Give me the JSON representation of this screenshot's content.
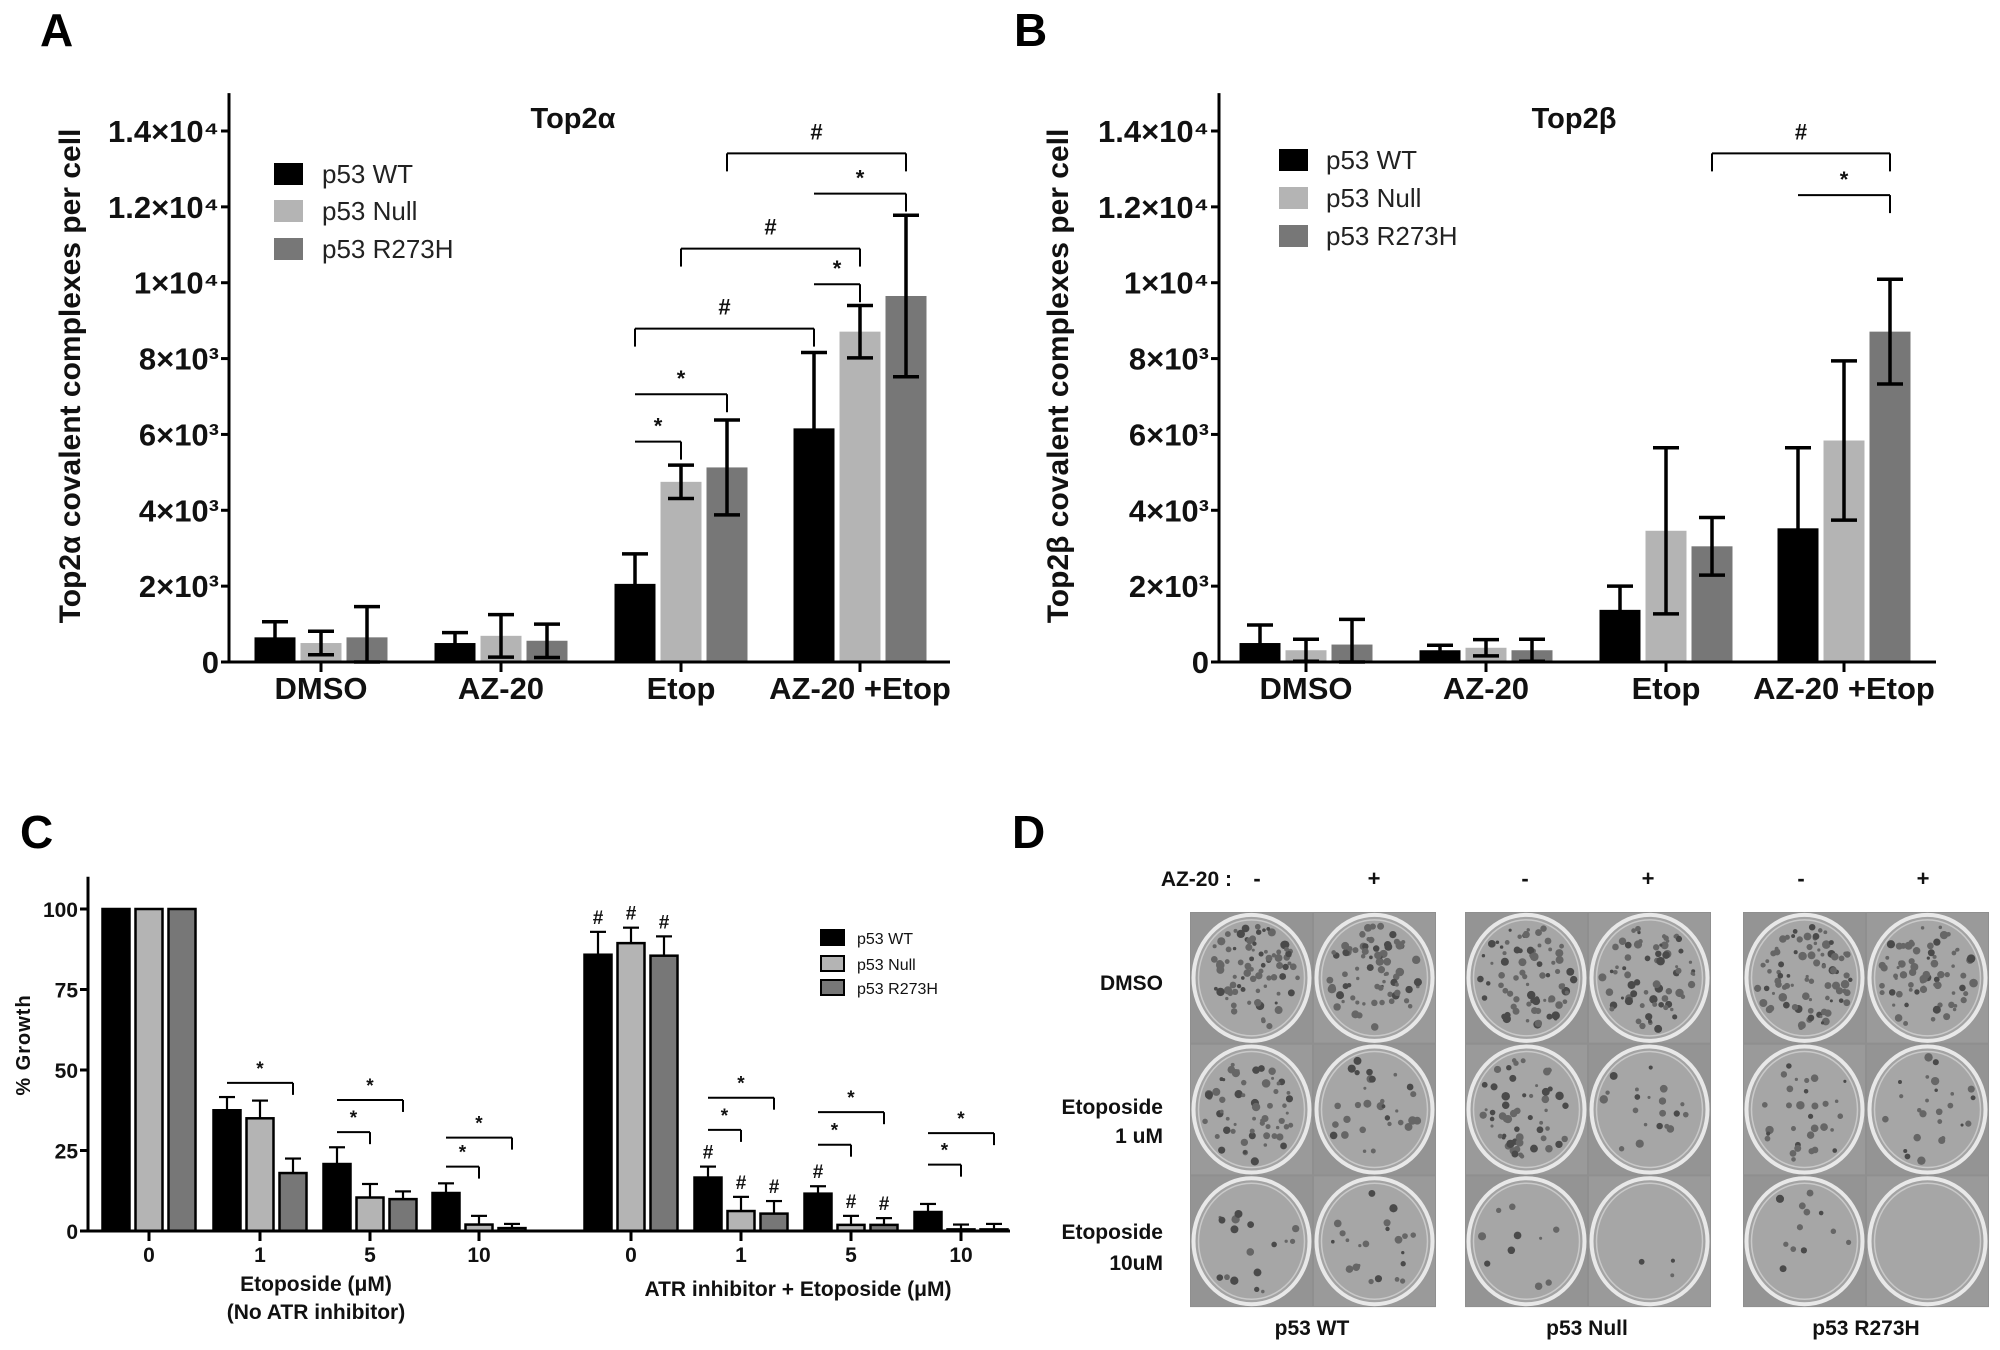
{
  "panel_letters": {
    "a": "A",
    "b": "B",
    "c": "C",
    "d": "D"
  },
  "chart_data": [
    {
      "panel": "A",
      "type": "bar",
      "title": "Top2α",
      "ylabel": "Top2α covalent complexes per cell",
      "xlabel": "",
      "categories": [
        "DMSO",
        "AZ-20",
        "Etop",
        "AZ-20 +Etop"
      ],
      "ylim": [
        0,
        15000
      ],
      "yticks": [
        0,
        2000,
        4000,
        6000,
        8000,
        10000,
        12000,
        14000
      ],
      "ytick_labels": [
        "0",
        "2×10³",
        "4×10³",
        "6×10³",
        "8×10³",
        "1×10⁴",
        "1.2×10⁴",
        "1.4×10⁴"
      ],
      "grid": false,
      "legend_position": "top-left",
      "series": [
        {
          "name": "p53 WT",
          "color": "#000000",
          "values": [
            650,
            500,
            2060,
            6160
          ],
          "errors": [
            410,
            275,
            790,
            2000
          ]
        },
        {
          "name": "p53 Null",
          "color": "#b4b4b4",
          "values": [
            500,
            690,
            4750,
            8710
          ],
          "errors": [
            310,
            560,
            440,
            690
          ]
        },
        {
          "name": "p53 R273H",
          "color": "#777777",
          "values": [
            650,
            560,
            5130,
            9650
          ],
          "errors": [
            810,
            440,
            1250,
            2130
          ]
        }
      ],
      "annotations": [
        {
          "symbol": "*",
          "from": [
            2,
            0
          ],
          "to": [
            2,
            1
          ],
          "y": 5810
        },
        {
          "symbol": "*",
          "from": [
            2,
            0
          ],
          "to": [
            2,
            2
          ],
          "y": 7060
        },
        {
          "symbol": "#",
          "from": [
            2,
            0
          ],
          "to": [
            3,
            0
          ],
          "y": 8790
        },
        {
          "symbol": "*",
          "from": [
            3,
            0
          ],
          "to": [
            3,
            1
          ],
          "y": 9960
        },
        {
          "symbol": "#",
          "from": [
            2,
            1
          ],
          "to": [
            3,
            1
          ],
          "y": 10900
        },
        {
          "symbol": "*",
          "from": [
            3,
            0
          ],
          "to": [
            3,
            2
          ],
          "y": 12350
        },
        {
          "symbol": "#",
          "from": [
            2,
            2
          ],
          "to": [
            3,
            2
          ],
          "y": 13410
        }
      ]
    },
    {
      "panel": "B",
      "type": "bar",
      "title": "Top2β",
      "ylabel": "Top2β covalent complexes per cell",
      "xlabel": "",
      "categories": [
        "DMSO",
        "AZ-20",
        "Etop",
        "AZ-20 +Etop"
      ],
      "ylim": [
        0,
        15000
      ],
      "yticks": [
        0,
        2000,
        4000,
        6000,
        8000,
        10000,
        12000,
        14000
      ],
      "ytick_labels": [
        "0",
        "2×10³",
        "4×10³",
        "6×10³",
        "8×10³",
        "1×10⁴",
        "1.2×10⁴",
        "1.4×10⁴"
      ],
      "grid": false,
      "legend_position": "top-left",
      "series": [
        {
          "name": "p53 WT",
          "color": "#000000",
          "values": [
            500,
            310,
            1375,
            3525
          ],
          "errors": [
            475,
            130,
            625,
            2125
          ]
        },
        {
          "name": "p53 Null",
          "color": "#b4b4b4",
          "values": [
            310,
            375,
            3460,
            5840
          ],
          "errors": [
            290,
            215,
            2190,
            2100
          ]
        },
        {
          "name": "p53 R273H",
          "color": "#777777",
          "values": [
            460,
            310,
            3050,
            8710
          ],
          "errors": [
            665,
            290,
            760,
            1380
          ]
        }
      ],
      "annotations": [
        {
          "symbol": "*",
          "from": [
            3,
            0
          ],
          "to": [
            3,
            2
          ],
          "y": 12310
        },
        {
          "symbol": "#",
          "from": [
            2,
            2
          ],
          "to": [
            3,
            2
          ],
          "y": 13410
        }
      ]
    },
    {
      "panel": "C",
      "type": "bar",
      "title": "",
      "ylabel": "% Growth",
      "categories": [
        "0",
        "1",
        "5",
        "10",
        "0",
        "1",
        "5",
        "10"
      ],
      "group_labels": [
        {
          "line1": "Etoposide (μM)",
          "line2": "(No ATR inhibitor)"
        },
        {
          "line1": "ATR inhibitor + Etoposide (μM)",
          "line2": ""
        }
      ],
      "ylim": [
        0,
        110
      ],
      "yticks": [
        0,
        25,
        50,
        75,
        100
      ],
      "ytick_labels": [
        "0",
        "25",
        "50",
        "75",
        "100"
      ],
      "grid": false,
      "legend_position": "top-right",
      "series": [
        {
          "name": "p53 WT",
          "color": "#000000",
          "values": [
            100,
            37.5,
            20.8,
            11.8,
            85.8,
            16.6,
            11.6,
            5.9
          ],
          "errors": [
            0,
            4.1,
            5.2,
            3.0,
            7.1,
            3.4,
            2.3,
            2.5
          ]
        },
        {
          "name": "p53 Null",
          "color": "#b4b4b4",
          "values": [
            100,
            35.0,
            10.4,
            2.0,
            89.4,
            6.2,
            1.9,
            0.5
          ],
          "errors": [
            0,
            5.5,
            4.2,
            2.7,
            4.8,
            4.4,
            2.8,
            1.5
          ]
        },
        {
          "name": "p53 R273H",
          "color": "#777777",
          "values": [
            100,
            18.0,
            9.9,
            0.9,
            85.5,
            5.4,
            1.9,
            0.5
          ],
          "errors": [
            0,
            4.5,
            2.4,
            1.3,
            6.0,
            3.9,
            2.1,
            1.7
          ]
        }
      ],
      "annotations": [
        {
          "symbol": "*",
          "from": [
            1,
            0
          ],
          "to": [
            1,
            2
          ],
          "y": 46
        },
        {
          "symbol": "*",
          "from": [
            2,
            0
          ],
          "to": [
            2,
            1
          ],
          "y": 30.7
        },
        {
          "symbol": "*",
          "from": [
            2,
            0
          ],
          "to": [
            2,
            2
          ],
          "y": 40.7
        },
        {
          "symbol": "*",
          "from": [
            3,
            0
          ],
          "to": [
            3,
            1
          ],
          "y": 20
        },
        {
          "symbol": "*",
          "from": [
            3,
            0
          ],
          "to": [
            3,
            2
          ],
          "y": 29
        },
        {
          "symbol": "*",
          "from": [
            5,
            0
          ],
          "to": [
            5,
            1
          ],
          "y": 31.4
        },
        {
          "symbol": "*",
          "from": [
            5,
            0
          ],
          "to": [
            5,
            2
          ],
          "y": 41.4
        },
        {
          "symbol": "*",
          "from": [
            6,
            0
          ],
          "to": [
            6,
            1
          ],
          "y": 26.8
        },
        {
          "symbol": "*",
          "from": [
            6,
            0
          ],
          "to": [
            6,
            2
          ],
          "y": 36.9
        },
        {
          "symbol": "*",
          "from": [
            7,
            0
          ],
          "to": [
            7,
            1
          ],
          "y": 20.6
        },
        {
          "symbol": "*",
          "from": [
            7,
            0
          ],
          "to": [
            7,
            2
          ],
          "y": 30.4
        }
      ],
      "bar_markers": [
        {
          "symbol": "#",
          "bar": [
            4,
            0
          ]
        },
        {
          "symbol": "#",
          "bar": [
            4,
            1
          ]
        },
        {
          "symbol": "#",
          "bar": [
            4,
            2
          ]
        },
        {
          "symbol": "#",
          "bar": [
            5,
            0
          ]
        },
        {
          "symbol": "#",
          "bar": [
            5,
            1
          ]
        },
        {
          "symbol": "#",
          "bar": [
            5,
            2
          ]
        },
        {
          "symbol": "#",
          "bar": [
            6,
            0
          ]
        },
        {
          "symbol": "#",
          "bar": [
            6,
            1
          ]
        },
        {
          "symbol": "#",
          "bar": [
            6,
            2
          ]
        }
      ]
    }
  ],
  "panel_d": {
    "treatment_label": "AZ-20 :",
    "signs": [
      "-",
      "+",
      "-",
      "+",
      "-",
      "+"
    ],
    "rows": [
      {
        "line1": "DMSO",
        "line2": ""
      },
      {
        "line1": "Etoposide",
        "line2": "1 uM"
      },
      {
        "line1": "Etoposide",
        "line2": "10uM"
      }
    ],
    "cell_lines": [
      "p53 WT",
      "p53 Null",
      "p53 R273H"
    ]
  }
}
